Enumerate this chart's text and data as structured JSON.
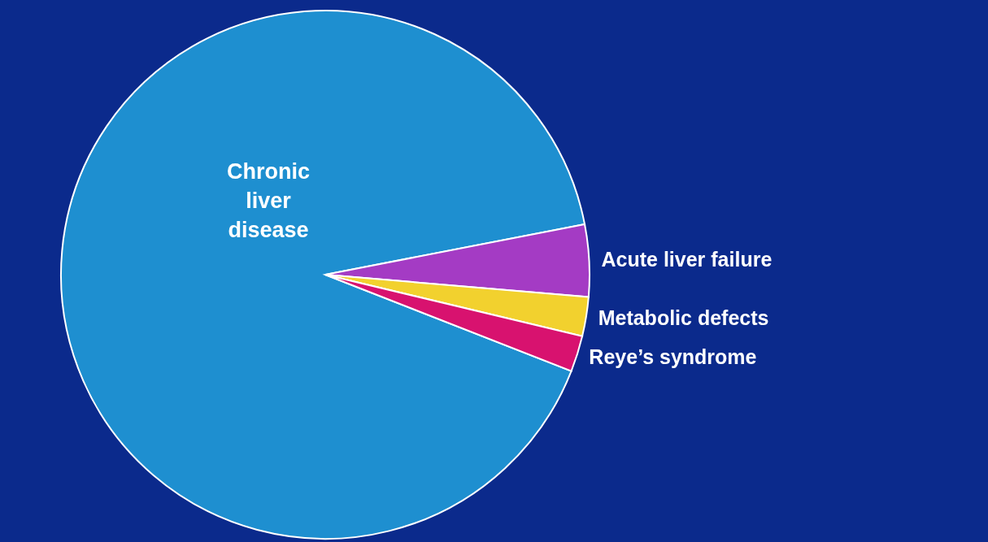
{
  "chart_data": {
    "type": "pie",
    "categories": [
      "Chronic liver disease",
      "Acute liver failure",
      "Metabolic defects",
      "Reye’s  syndrome"
    ],
    "values": [
      91,
      4.4,
      2.4,
      2.2
    ],
    "colors": [
      "#1e8fd0",
      "#a43bc4",
      "#f2d12e",
      "#d8126f"
    ]
  }
}
